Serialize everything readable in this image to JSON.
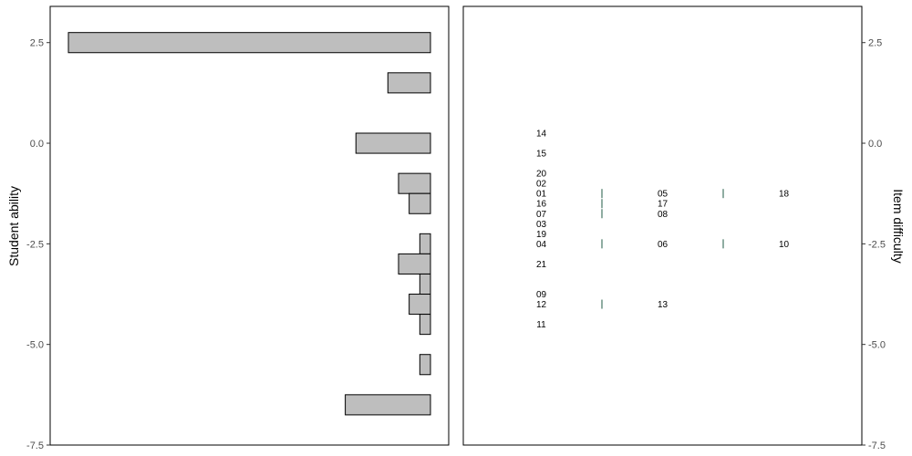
{
  "chart_data": {
    "type": "wright-map",
    "colors": {
      "bar_fill": "#bebebe",
      "bar_stroke": "#000000",
      "threshold_mark": "#5f8a7a",
      "panel_border": "#000000"
    },
    "student_panel": {
      "type": "bar",
      "orientation": "horizontal",
      "ylabel": "Student ability",
      "ylim": [
        -7.5,
        3.4
      ],
      "yticks": [
        "2.5",
        "0.0",
        "-2.5",
        "-5.0",
        "-7.5"
      ],
      "ytick_values": [
        2.5,
        0.0,
        -2.5,
        -5.0,
        -7.5
      ],
      "bars": [
        {
          "y": 2.5,
          "count": 34
        },
        {
          "y": 1.5,
          "count": 4
        },
        {
          "y": 0.0,
          "count": 7
        },
        {
          "y": -1.0,
          "count": 3
        },
        {
          "y": -1.5,
          "count": 2
        },
        {
          "y": -2.5,
          "count": 1
        },
        {
          "y": -3.0,
          "count": 3
        },
        {
          "y": -3.5,
          "count": 1
        },
        {
          "y": -4.0,
          "count": 2
        },
        {
          "y": -4.5,
          "count": 1
        },
        {
          "y": -5.5,
          "count": 1
        },
        {
          "y": -6.5,
          "count": 8
        }
      ],
      "count_max": 37
    },
    "item_panel": {
      "type": "scatter",
      "ylabel": "Item difficulty",
      "ylim": [
        -7.5,
        3.4
      ],
      "yticks": [
        "2.5",
        "0.0",
        "-2.5",
        "-5.0",
        "-7.5"
      ],
      "ytick_values": [
        2.5,
        0.0,
        -2.5,
        -5.0,
        -7.5
      ],
      "columns": [
        1,
        3,
        5
      ],
      "items": [
        {
          "label": "14",
          "y": 0.25,
          "col": 1
        },
        {
          "label": "15",
          "y": -0.25,
          "col": 1
        },
        {
          "label": "20",
          "y": -0.75,
          "col": 1
        },
        {
          "label": "02",
          "y": -1.0,
          "col": 1
        },
        {
          "label": "01",
          "y": -1.25,
          "col": 1
        },
        {
          "label": "16",
          "y": -1.5,
          "col": 1
        },
        {
          "label": "07",
          "y": -1.75,
          "col": 1
        },
        {
          "label": "03",
          "y": -2.0,
          "col": 1
        },
        {
          "label": "19",
          "y": -2.25,
          "col": 1
        },
        {
          "label": "04",
          "y": -2.5,
          "col": 1
        },
        {
          "label": "21",
          "y": -3.0,
          "col": 1
        },
        {
          "label": "09",
          "y": -3.75,
          "col": 1
        },
        {
          "label": "12",
          "y": -4.0,
          "col": 1
        },
        {
          "label": "11",
          "y": -4.5,
          "col": 1
        },
        {
          "label": "05",
          "y": -1.25,
          "col": 3
        },
        {
          "label": "17",
          "y": -1.5,
          "col": 3
        },
        {
          "label": "08",
          "y": -1.75,
          "col": 3
        },
        {
          "label": "06",
          "y": -2.5,
          "col": 3
        },
        {
          "label": "13",
          "y": -4.0,
          "col": 3
        },
        {
          "label": "18",
          "y": -1.25,
          "col": 5
        },
        {
          "label": "10",
          "y": -2.5,
          "col": 5
        }
      ],
      "thresholds": [
        {
          "y": -1.25,
          "col": 2
        },
        {
          "y": -1.5,
          "col": 2
        },
        {
          "y": -1.75,
          "col": 2
        },
        {
          "y": -2.5,
          "col": 2
        },
        {
          "y": -4.0,
          "col": 2
        },
        {
          "y": -1.25,
          "col": 4
        },
        {
          "y": -2.5,
          "col": 4
        }
      ]
    }
  }
}
